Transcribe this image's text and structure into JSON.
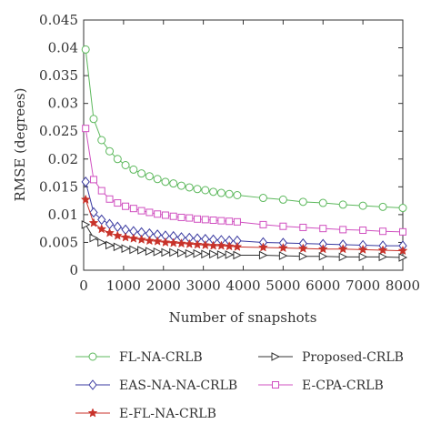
{
  "chart_data": {
    "type": "line",
    "xlabel": "Number of snapshots",
    "ylabel": "RMSE (degrees)",
    "xlim": [
      0,
      8000
    ],
    "ylim": [
      0,
      0.045
    ],
    "xticks": [
      0,
      1000,
      2000,
      3000,
      4000,
      5000,
      6000,
      7000,
      8000
    ],
    "xtick_labels": [
      "0",
      "1000",
      "2000",
      "3000",
      "4000",
      "5000",
      "6000",
      "7000",
      "8000"
    ],
    "yticks": [
      0,
      0.005,
      0.01,
      0.015,
      0.02,
      0.025,
      0.03,
      0.035,
      0.04,
      0.045
    ],
    "ytick_labels": [
      "0",
      "0.005",
      "0.01",
      "0.015",
      "0.02",
      "0.025",
      "0.03",
      "0.035",
      "0.04",
      "0.045"
    ],
    "grid": false,
    "legend_position": "bottom",
    "x": [
      50,
      250,
      450,
      650,
      850,
      1050,
      1250,
      1450,
      1650,
      1850,
      2050,
      2250,
      2450,
      2650,
      2850,
      3050,
      3250,
      3450,
      3650,
      3850,
      4500,
      5000,
      5500,
      6000,
      6500,
      7000,
      7500,
      8000
    ],
    "series": [
      {
        "name": "FL-NA-CRLB",
        "color": "#5cb85c",
        "marker": "circle",
        "values": [
          0.0397,
          0.0272,
          0.0234,
          0.0214,
          0.02,
          0.0189,
          0.0181,
          0.0174,
          0.0169,
          0.0164,
          0.0159,
          0.0156,
          0.0152,
          0.0149,
          0.0146,
          0.0144,
          0.0141,
          0.0139,
          0.0137,
          0.0135,
          0.013,
          0.0127,
          0.0123,
          0.0121,
          0.0118,
          0.0116,
          0.0114,
          0.0112
        ]
      },
      {
        "name": "EAS-NA-NA-CRLB",
        "color": "#3a3aa0",
        "marker": "diamond",
        "values": [
          0.0159,
          0.0104,
          0.0091,
          0.0083,
          0.0078,
          0.0073,
          0.007,
          0.0068,
          0.0066,
          0.0064,
          0.0062,
          0.0061,
          0.0059,
          0.0058,
          0.0057,
          0.0056,
          0.0055,
          0.0054,
          0.0053,
          0.0053,
          0.005,
          0.0049,
          0.0048,
          0.0047,
          0.0046,
          0.0045,
          0.0044,
          0.0044
        ]
      },
      {
        "name": "E-FL-NA-CRLB",
        "color": "#c8322a",
        "marker": "star",
        "values": [
          0.0127,
          0.0085,
          0.0074,
          0.0067,
          0.0062,
          0.0059,
          0.0057,
          0.0055,
          0.0053,
          0.0052,
          0.005,
          0.0049,
          0.0048,
          0.0047,
          0.0046,
          0.0045,
          0.0044,
          0.0044,
          0.0043,
          0.0042,
          0.0041,
          0.004,
          0.0039,
          0.0038,
          0.0038,
          0.0037,
          0.0036,
          0.0035
        ]
      },
      {
        "name": "Proposed-CRLB",
        "color": "#333333",
        "marker": "triangle-right",
        "values": [
          0.0082,
          0.0058,
          0.005,
          0.0045,
          0.0042,
          0.0039,
          0.0037,
          0.0036,
          0.0034,
          0.0033,
          0.0032,
          0.0032,
          0.0031,
          0.003,
          0.003,
          0.0029,
          0.0029,
          0.0028,
          0.0028,
          0.0027,
          0.0027,
          0.0026,
          0.0025,
          0.0025,
          0.0024,
          0.0024,
          0.0024,
          0.0023
        ]
      },
      {
        "name": "E-CPA-CRLB",
        "color": "#d050c0",
        "marker": "square",
        "values": [
          0.0255,
          0.0163,
          0.0143,
          0.0128,
          0.0121,
          0.0115,
          0.0111,
          0.0107,
          0.0104,
          0.0101,
          0.0099,
          0.0097,
          0.0095,
          0.0094,
          0.0092,
          0.0091,
          0.009,
          0.0089,
          0.0088,
          0.0087,
          0.0082,
          0.0079,
          0.0077,
          0.0075,
          0.0073,
          0.0072,
          0.007,
          0.0069
        ]
      }
    ]
  }
}
